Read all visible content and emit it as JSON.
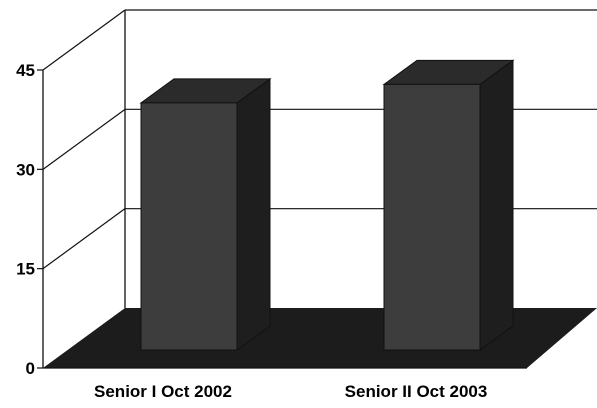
{
  "chart_data": {
    "type": "bar",
    "title": "",
    "xlabel": "",
    "ylabel": "",
    "categories": [
      "Senior I Oct 2002",
      "Senior II Oct 2003"
    ],
    "values": [
      40,
      43
    ],
    "ylim": [
      0,
      45
    ],
    "yticks": [
      "0",
      "15",
      "30",
      "45"
    ],
    "style": "3d",
    "grid": true,
    "legend": "none",
    "colors": {
      "bar_front": "#3d3d3d",
      "bar_side": "#1e1e1e",
      "bar_top": "#2b2b2b",
      "floor": "#1c1c1c",
      "gridline": "#111111",
      "text": "#000000"
    }
  }
}
